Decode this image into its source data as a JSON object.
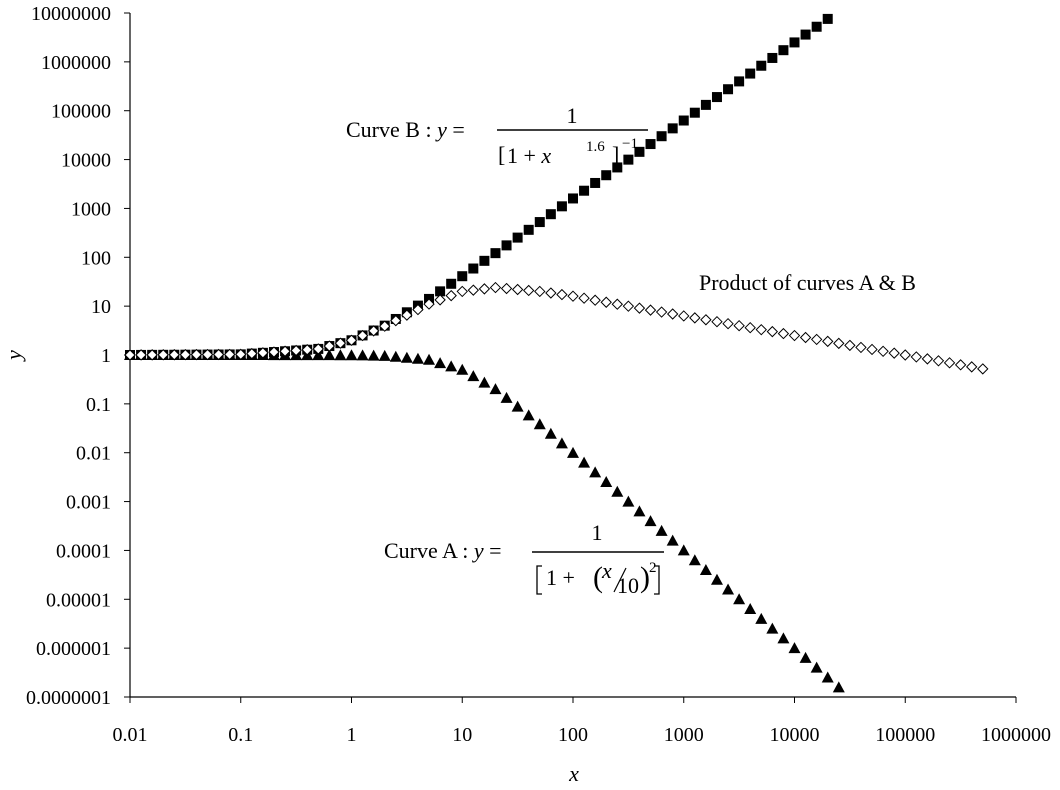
{
  "chart_data": {
    "type": "scatter",
    "xscale": "log",
    "yscale": "log",
    "xlabel": "x",
    "ylabel": "y",
    "xlim": [
      0.01,
      1000000
    ],
    "ylim": [
      1e-07,
      10000000
    ],
    "grid": false,
    "x_tick_labels": [
      "0.01",
      "0.1",
      "1",
      "10",
      "100",
      "1000",
      "10000",
      "100000",
      "1000000"
    ],
    "y_tick_labels": [
      "10000000",
      "1000000",
      "100000",
      "10000",
      "1000",
      "100",
      "10",
      "1",
      "0.1",
      "0.01",
      "0.001",
      "0.0001",
      "0.00001",
      "0.000001",
      "0.0000001"
    ],
    "series": [
      {
        "name": "Curve A",
        "marker": "triangle",
        "x": [
          0.01,
          0.1,
          1,
          2,
          5,
          10,
          20,
          50,
          100,
          200,
          500,
          1000,
          2000,
          5000,
          10000,
          20000,
          30000
        ],
        "y": [
          1,
          1,
          0.99,
          0.962,
          0.8,
          0.5,
          0.2,
          0.0385,
          0.0099,
          0.0025,
          0.0004,
          0.0001,
          2.5e-05,
          4e-06,
          1e-06,
          2.5e-07,
          1.1e-07
        ]
      },
      {
        "name": "Curve B",
        "marker": "square",
        "x": [
          0.01,
          0.1,
          0.5,
          1,
          2,
          5,
          10,
          20,
          50,
          100,
          200,
          500,
          1000,
          2000,
          5000,
          10000,
          20000,
          25000
        ],
        "y": [
          1,
          1.03,
          1.33,
          2,
          4,
          14,
          41,
          122,
          524,
          1600,
          4800,
          20700,
          63000,
          191000,
          830000,
          2500000,
          7600000,
          11000000
        ]
      },
      {
        "name": "Product of curves A & B",
        "marker": "diamond",
        "x": [
          0.01,
          0.1,
          0.5,
          1,
          2,
          5,
          10,
          20,
          50,
          100,
          200,
          500,
          1000,
          2000,
          5000,
          10000,
          20000,
          50000,
          100000,
          200000,
          500000,
          600000
        ],
        "y": [
          1,
          1.03,
          1.33,
          2,
          3.9,
          11,
          20,
          24,
          20,
          16,
          12,
          8.3,
          6.3,
          4.8,
          3.3,
          2.5,
          1.9,
          1.3,
          1.0,
          0.76,
          0.52,
          0.48
        ]
      }
    ],
    "annotations": {
      "curve_b": {
        "prefix": "Curve B : ",
        "var": "y",
        "eq": " = ",
        "numerator": "1",
        "denominator_base": "1 + ",
        "denominator_var": "x",
        "exponent": "1.6",
        "outer_exponent": "−1"
      },
      "curve_a": {
        "prefix": "Curve A : ",
        "var": "y",
        "eq": " = ",
        "numerator": "1",
        "denominator_base": "1 + ",
        "frac_num": "x",
        "frac_den": "10",
        "exponent": "2"
      },
      "product": "Product of curves A & B"
    }
  }
}
